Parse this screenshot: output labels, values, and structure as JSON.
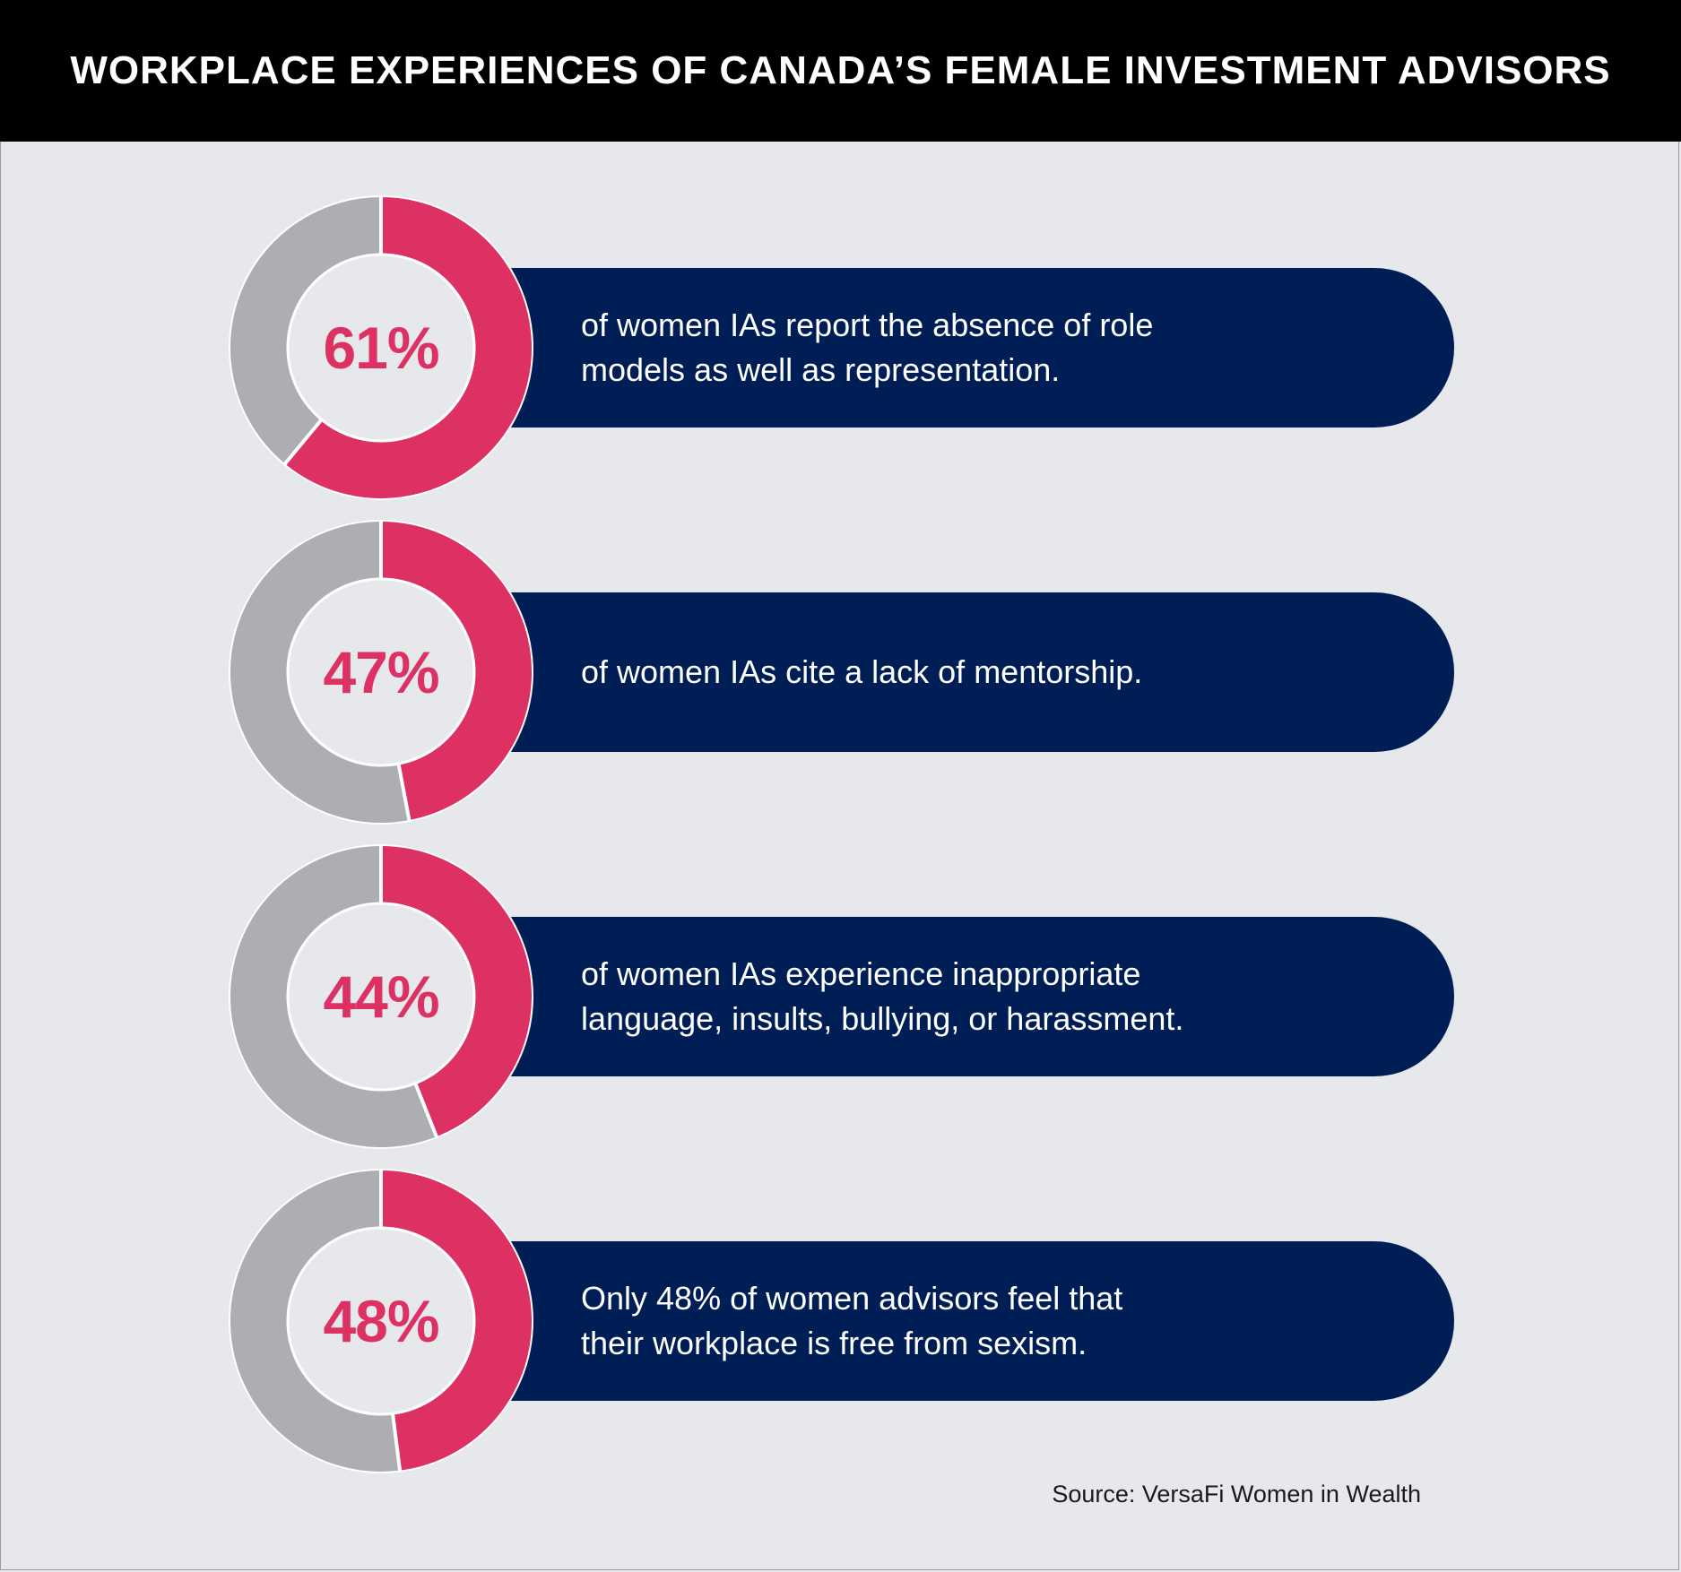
{
  "header": {
    "title": "WORKPLACE EXPERIENCES OF CANADA’S FEMALE INVESTMENT ADVISORS"
  },
  "colors": {
    "accent": "#dc3162",
    "remainder": "#adaeb2",
    "bar": "#001e56",
    "background": "#e7e8ec"
  },
  "chart_data": {
    "type": "pie",
    "title": "WORKPLACE EXPERIENCES OF CANADA’S FEMALE INVESTMENT ADVISORS",
    "items": [
      {
        "value": 61,
        "label": "61%",
        "text_lines": [
          "of women IAs report the absence of role",
          "models as well as representation."
        ]
      },
      {
        "value": 47,
        "label": "47%",
        "text_lines": [
          "of women IAs cite a lack of mentorship."
        ]
      },
      {
        "value": 44,
        "label": "44%",
        "text_lines": [
          "of women IAs experience inappropriate",
          "language, insults, bullying, or harassment."
        ]
      },
      {
        "value": 48,
        "label": "48%",
        "text_lines": [
          "Only 48% of women advisors feel that",
          "their workplace is free from sexism."
        ]
      }
    ]
  },
  "source": "Source: VersaFi Women in Wealth"
}
